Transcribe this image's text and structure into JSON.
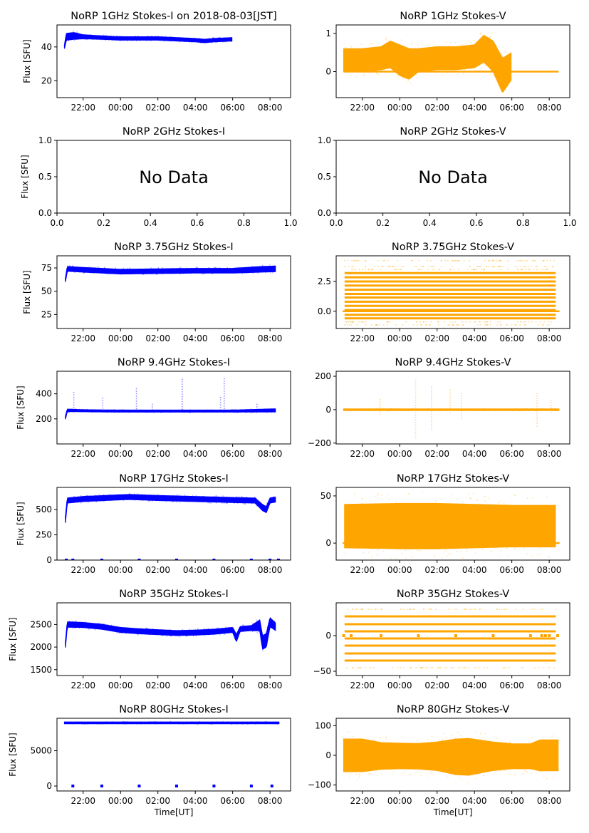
{
  "figure": {
    "x_tick_labels_time": [
      "22:00",
      "00:00",
      "02:00",
      "04:00",
      "06:00",
      "08:00"
    ],
    "x_label": "Time[UT]",
    "y_label": "Flux [SFU]",
    "no_data_text": "No Data",
    "colors": {
      "stokes_i": "#0000ff",
      "stokes_v": "#ffa500",
      "axes": "#000000"
    }
  },
  "chart_data": [
    {
      "type": "scatter",
      "id": "1ghz-i",
      "title": "NoRP 1GHz Stokes-I on 2018-08-03[JST]",
      "ylabel": "Flux [SFU]",
      "xlabel": "",
      "color": "#0000ff",
      "xlim_hours": [
        -3.4,
        9.1
      ],
      "ylim": [
        10,
        53
      ],
      "yticks": [
        20,
        40
      ],
      "ytick_labels": [
        "20",
        "40"
      ],
      "xtick_labels": [
        "22:00",
        "00:00",
        "02:00",
        "04:00",
        "06:00",
        "08:00"
      ],
      "band": {
        "x": [
          -3.0,
          -2.9,
          -2.5,
          -2.0,
          -1.0,
          0.0,
          1.0,
          2.0,
          3.0,
          4.0,
          4.5,
          5.0,
          6.0
        ],
        "center": [
          40,
          46,
          46.5,
          46,
          45.5,
          45,
          45,
          45,
          44.5,
          44,
          43.5,
          44,
          44.5
        ],
        "halfwidth": [
          1,
          2,
          2,
          1.2,
          1,
          1,
          1,
          1,
          1,
          1,
          1,
          1,
          1
        ]
      },
      "baseline_points": []
    },
    {
      "type": "scatter",
      "id": "1ghz-v",
      "title": "NoRP 1GHz Stokes-V",
      "ylabel": "",
      "xlabel": "",
      "color": "#ffa500",
      "xlim_hours": [
        -3.4,
        9.1
      ],
      "ylim": [
        -0.68,
        1.22
      ],
      "yticks": [
        0,
        1
      ],
      "ytick_labels": [
        "0",
        "1"
      ],
      "xtick_labels": [
        "22:00",
        "00:00",
        "02:00",
        "04:00",
        "06:00",
        "08:00"
      ],
      "band": {
        "x": [
          -3.0,
          -2.0,
          -1.0,
          -0.5,
          0.0,
          0.5,
          1.0,
          2.0,
          3.0,
          4.0,
          4.5,
          5.0,
          5.5,
          6.0
        ],
        "center": [
          0.3,
          0.3,
          0.35,
          0.45,
          0.3,
          0.2,
          0.3,
          0.35,
          0.35,
          0.4,
          0.6,
          0.4,
          -0.1,
          0.15
        ],
        "halfwidth": [
          0.3,
          0.3,
          0.3,
          0.35,
          0.4,
          0.4,
          0.3,
          0.3,
          0.3,
          0.3,
          0.35,
          0.4,
          0.45,
          0.35
        ]
      },
      "baseline": {
        "value": 0,
        "x_start": -3.0,
        "x_end": 8.5
      }
    },
    {
      "type": "empty",
      "id": "2ghz-i",
      "title": "NoRP 2GHz Stokes-I",
      "ylabel": "Flux [SFU]",
      "xlabel": "",
      "no_data": true,
      "xlim": [
        0,
        1
      ],
      "ylim": [
        0,
        1
      ],
      "yticks": [
        0,
        0.5,
        1
      ],
      "ytick_labels": [
        "0.0",
        "0.5",
        "1.0"
      ],
      "xticks": [
        0,
        0.2,
        0.4,
        0.6,
        0.8,
        1.0
      ],
      "xtick_labels": [
        "0.0",
        "0.2",
        "0.4",
        "0.6",
        "0.8",
        "1.0"
      ]
    },
    {
      "type": "empty",
      "id": "2ghz-v",
      "title": "NoRP 2GHz Stokes-V",
      "ylabel": "",
      "xlabel": "",
      "no_data": true,
      "xlim": [
        0,
        1
      ],
      "ylim": [
        0,
        1
      ],
      "yticks": [
        0,
        0.5,
        1
      ],
      "ytick_labels": [
        "0.0",
        "0.5",
        "1.0"
      ],
      "xticks": [
        0,
        0.2,
        0.4,
        0.6,
        0.8,
        1.0
      ],
      "xtick_labels": [
        "0.0",
        "0.2",
        "0.4",
        "0.6",
        "0.8",
        "1.0"
      ]
    },
    {
      "type": "scatter",
      "id": "375ghz-i",
      "title": "NoRP 3.75GHz Stokes-I",
      "ylabel": "Flux [SFU]",
      "xlabel": "",
      "color": "#0000ff",
      "xlim_hours": [
        -3.4,
        9.1
      ],
      "ylim": [
        10,
        88
      ],
      "yticks": [
        25,
        50,
        75
      ],
      "ytick_labels": [
        "25",
        "50",
        "75"
      ],
      "xtick_labels": [
        "22:00",
        "00:00",
        "02:00",
        "04:00",
        "06:00",
        "08:00"
      ],
      "band": {
        "x": [
          -2.95,
          -2.85,
          -2.0,
          0.0,
          2.0,
          4.0,
          6.0,
          7.5,
          8.3
        ],
        "center": [
          62,
          74,
          73,
          71,
          71.5,
          72,
          72,
          73.5,
          74
        ],
        "halfwidth": [
          2,
          2.5,
          2.5,
          2.5,
          2.5,
          2.5,
          2.5,
          3,
          3
        ]
      },
      "baseline_points": []
    },
    {
      "type": "scatter",
      "id": "375ghz-v",
      "title": "NoRP 3.75GHz Stokes-V",
      "ylabel": "",
      "xlabel": "",
      "color": "#ffa500",
      "xlim_hours": [
        -3.4,
        9.1
      ],
      "ylim": [
        -1.45,
        4.65
      ],
      "yticks": [
        0,
        2.5
      ],
      "ytick_labels": [
        "0.0",
        "2.5"
      ],
      "xtick_labels": [
        "22:00",
        "00:00",
        "02:00",
        "04:00",
        "06:00",
        "08:00"
      ],
      "levels": [
        -0.6,
        -0.3,
        0.1,
        0.45,
        0.8,
        1.15,
        1.45,
        1.8,
        2.15,
        2.5,
        2.85,
        3.2
      ],
      "sparse_levels": [
        -1.15,
        -0.9,
        3.5,
        3.75,
        4.25
      ],
      "x_range": [
        -2.95,
        8.35
      ],
      "baseline": {
        "value": 0,
        "x_start": -3.05,
        "x_end": 8.55
      }
    },
    {
      "type": "scatter",
      "id": "94ghz-i",
      "title": "NoRP 9.4GHz Stokes-I",
      "ylabel": "Flux [SFU]",
      "xlabel": "",
      "color": "#0000ff",
      "xlim_hours": [
        -3.4,
        9.1
      ],
      "ylim": [
        0,
        580
      ],
      "yticks": [
        200,
        400
      ],
      "ytick_labels": [
        "200",
        "400"
      ],
      "xtick_labels": [
        "22:00",
        "00:00",
        "02:00",
        "04:00",
        "06:00",
        "08:00"
      ],
      "band": {
        "x": [
          -2.95,
          -2.85,
          -2.0,
          0.0,
          2.0,
          4.0,
          6.0,
          8.3
        ],
        "center": [
          210,
          268,
          265,
          262,
          262,
          262,
          262,
          268
        ],
        "halfwidth": [
          12,
          10,
          8,
          8,
          8,
          8,
          8,
          12
        ]
      },
      "spikes": [
        {
          "x": -0.95,
          "top": 370
        },
        {
          "x": 0.85,
          "top": 445
        },
        {
          "x": 1.7,
          "top": 320
        },
        {
          "x": 3.3,
          "top": 520
        },
        {
          "x": 5.35,
          "top": 375
        },
        {
          "x": 5.55,
          "top": 525
        },
        {
          "x": 7.3,
          "top": 320
        },
        {
          "x": -2.5,
          "top": 415
        }
      ],
      "baseline_points": []
    },
    {
      "type": "scatter",
      "id": "94ghz-v",
      "title": "NoRP 9.4GHz Stokes-V",
      "ylabel": "",
      "xlabel": "",
      "color": "#ffa500",
      "xlim_hours": [
        -3.4,
        9.1
      ],
      "ylim": [
        -205,
        230
      ],
      "yticks": [
        -200,
        0,
        200
      ],
      "ytick_labels": [
        "−200",
        "0",
        "200"
      ],
      "xtick_labels": [
        "22:00",
        "00:00",
        "02:00",
        "04:00",
        "06:00",
        "08:00"
      ],
      "band": {
        "x": [
          -3.0,
          8.55
        ],
        "center": [
          0,
          0
        ],
        "halfwidth": [
          5,
          5
        ]
      },
      "spikes": [
        {
          "x": -1.05,
          "top": 65,
          "bottom": -30
        },
        {
          "x": 0.85,
          "top": 180,
          "bottom": -180
        },
        {
          "x": 1.7,
          "top": 140,
          "bottom": -120
        },
        {
          "x": 2.7,
          "top": 120,
          "bottom": -20
        },
        {
          "x": 3.3,
          "top": 100,
          "bottom": -60
        },
        {
          "x": 7.35,
          "top": 100,
          "bottom": -110
        },
        {
          "x": 8.1,
          "top": 60,
          "bottom": -20
        }
      ]
    },
    {
      "type": "scatter",
      "id": "17ghz-i",
      "title": "NoRP 17GHz Stokes-I",
      "ylabel": "Flux [SFU]",
      "xlabel": "",
      "color": "#0000ff",
      "xlim_hours": [
        -3.4,
        9.1
      ],
      "ylim": [
        0,
        720
      ],
      "yticks": [
        0,
        250,
        500
      ],
      "ytick_labels": [
        "0",
        "250",
        "500"
      ],
      "xtick_labels": [
        "22:00",
        "00:00",
        "02:00",
        "04:00",
        "06:00",
        "08:00"
      ],
      "band": {
        "x": [
          -2.95,
          -2.85,
          -2.0,
          0.0,
          0.5,
          2.0,
          4.0,
          6.0,
          7.2,
          7.6,
          7.8,
          8.0,
          8.3
        ],
        "center": [
          400,
          590,
          605,
          622,
          625,
          615,
          605,
          595,
          590,
          520,
          500,
          590,
          600
        ],
        "halfwidth": [
          30,
          25,
          25,
          25,
          25,
          25,
          25,
          25,
          25,
          30,
          30,
          25,
          25
        ]
      },
      "baseline_points": [
        -2.9,
        -2.55,
        -1.0,
        1.0,
        3.0,
        5.0,
        7.0,
        8.0,
        8.45
      ]
    },
    {
      "type": "scatter",
      "id": "17ghz-v",
      "title": "NoRP 17GHz Stokes-V",
      "ylabel": "",
      "xlabel": "",
      "color": "#ffa500",
      "xlim_hours": [
        -3.4,
        9.1
      ],
      "ylim": [
        -18,
        59
      ],
      "yticks": [
        0,
        50
      ],
      "ytick_labels": [
        "0",
        "50"
      ],
      "xtick_labels": [
        "22:00",
        "00:00",
        "02:00",
        "04:00",
        "06:00",
        "08:00"
      ],
      "band": {
        "x": [
          -2.95,
          0.0,
          2.0,
          4.0,
          6.0,
          8.35
        ],
        "center": [
          18,
          18,
          18,
          18,
          18,
          18
        ],
        "halfwidth": [
          23,
          24,
          24,
          23,
          22,
          22
        ]
      },
      "baseline": {
        "value": 0,
        "x_start": -3.05,
        "x_end": 8.55
      }
    },
    {
      "type": "scatter",
      "id": "35ghz-i",
      "title": "NoRP 35GHz Stokes-I",
      "ylabel": "Flux [SFU]",
      "xlabel": "",
      "color": "#0000ff",
      "xlim_hours": [
        -3.4,
        9.1
      ],
      "ylim": [
        1370,
        2980
      ],
      "yticks": [
        1500,
        2000,
        2500
      ],
      "ytick_labels": [
        "1500",
        "2000",
        "2500"
      ],
      "xtick_labels": [
        "22:00",
        "00:00",
        "02:00",
        "04:00",
        "06:00",
        "08:00"
      ],
      "band": {
        "x": [
          -2.95,
          -2.85,
          -2.0,
          -1.0,
          0.0,
          1.0,
          2.0,
          3.0,
          4.0,
          5.0,
          6.0,
          6.2,
          6.4,
          7.0,
          7.45,
          7.6,
          7.8,
          8.0,
          8.3
        ],
        "center": [
          2050,
          2500,
          2490,
          2450,
          2380,
          2350,
          2330,
          2310,
          2320,
          2340,
          2380,
          2200,
          2400,
          2420,
          2480,
          2100,
          2150,
          2550,
          2450
        ],
        "halfwidth": [
          60,
          60,
          55,
          55,
          55,
          55,
          55,
          55,
          55,
          55,
          55,
          80,
          55,
          55,
          120,
          150,
          150,
          100,
          80
        ]
      },
      "baseline_points": []
    },
    {
      "type": "scatter",
      "id": "35ghz-v",
      "title": "NoRP 35GHz Stokes-V",
      "ylabel": "",
      "xlabel": "",
      "color": "#ffa500",
      "xlim_hours": [
        -3.4,
        9.1
      ],
      "ylim": [
        -56,
        46
      ],
      "yticks": [
        -50,
        0
      ],
      "ytick_labels": [
        "−50",
        "0"
      ],
      "xtick_labels": [
        "22:00",
        "00:00",
        "02:00",
        "04:00",
        "06:00",
        "08:00"
      ],
      "levels": [
        -35,
        -25,
        -14,
        -4,
        6,
        16,
        27
      ],
      "sparse_levels": [
        -45,
        37
      ],
      "x_range": [
        -2.95,
        8.35
      ],
      "baseline_points": [
        -3.0,
        -2.6,
        -1.0,
        1.0,
        3.0,
        5.0,
        7.0,
        7.6,
        7.8,
        8.0,
        8.45
      ]
    },
    {
      "type": "scatter",
      "id": "80ghz-i",
      "title": "NoRP 80GHz Stokes-I",
      "ylabel": "Flux [SFU]",
      "xlabel": "Time[UT]",
      "color": "#0000ff",
      "xlim_hours": [
        -3.4,
        9.1
      ],
      "ylim": [
        -700,
        9600
      ],
      "yticks": [
        0,
        5000
      ],
      "ytick_labels": [
        "0",
        "5000"
      ],
      "xtick_labels": [
        "22:00",
        "00:00",
        "02:00",
        "04:00",
        "06:00",
        "08:00"
      ],
      "band": {
        "x": [
          -3.0,
          0.0,
          4.0,
          8.5
        ],
        "center": [
          8950,
          8950,
          8950,
          8950
        ],
        "halfwidth": [
          120,
          120,
          120,
          120
        ]
      },
      "baseline_points": [
        -2.55,
        -1.0,
        1.0,
        3.0,
        5.0,
        7.0,
        8.1
      ]
    },
    {
      "type": "scatter",
      "id": "80ghz-v",
      "title": "NoRP 80GHz Stokes-V",
      "ylabel": "",
      "xlabel": "Time[UT]",
      "color": "#ffa500",
      "xlim_hours": [
        -3.4,
        9.1
      ],
      "ylim": [
        -120,
        125
      ],
      "yticks": [
        -100,
        0,
        100
      ],
      "ytick_labels": [
        "−100",
        "0",
        "100"
      ],
      "xtick_labels": [
        "22:00",
        "00:00",
        "02:00",
        "04:00",
        "06:00",
        "08:00"
      ],
      "band": {
        "x": [
          -3.0,
          -2.0,
          -1.0,
          0.0,
          1.0,
          2.0,
          3.0,
          3.7,
          5.0,
          6.0,
          7.0,
          7.5,
          8.5
        ],
        "center": [
          0,
          0,
          -2,
          -2,
          -3,
          -3,
          -5,
          -5,
          -3,
          -3,
          -3,
          0,
          0
        ],
        "halfwidth": [
          55,
          55,
          45,
          43,
          43,
          48,
          60,
          62,
          48,
          42,
          42,
          52,
          52
        ]
      },
      "baseline_points": []
    }
  ]
}
